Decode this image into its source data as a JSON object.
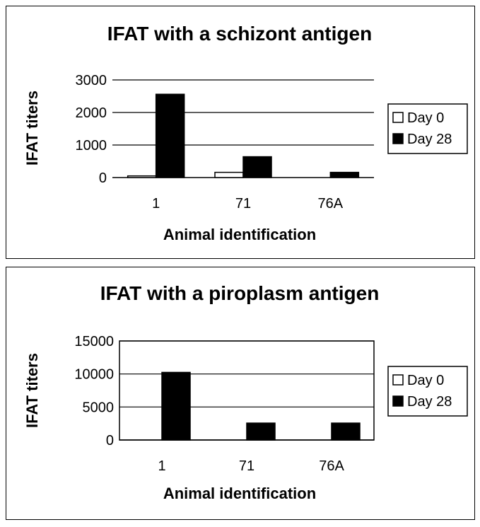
{
  "chart_data": [
    {
      "type": "bar",
      "title": "IFAT with a schizont antigen",
      "xlabel": "Animal identification",
      "ylabel": "IFAT titers",
      "categories": [
        "1",
        "71",
        "76A"
      ],
      "series": [
        {
          "name": "Day 0",
          "values": [
            50,
            160,
            0
          ],
          "color": "#ffffff"
        },
        {
          "name": "Day 28",
          "values": [
            2560,
            640,
            160
          ],
          "color": "#000000"
        }
      ],
      "ylim": [
        0,
        3000
      ],
      "yticks": [
        "0",
        "1000",
        "2000",
        "3000"
      ],
      "grid": "horizontal",
      "legend": "right",
      "plot_border": false
    },
    {
      "type": "bar",
      "title": "IFAT with a piroplasm antigen",
      "xlabel": "Animal identification",
      "ylabel": "IFAT titers",
      "categories": [
        "1",
        "71",
        "76A"
      ],
      "series": [
        {
          "name": "Day 0",
          "values": [
            0,
            0,
            0
          ],
          "color": "#ffffff"
        },
        {
          "name": "Day 28",
          "values": [
            10240,
            2560,
            2560
          ],
          "color": "#000000"
        }
      ],
      "ylim": [
        0,
        15000
      ],
      "yticks": [
        "0",
        "5000",
        "10000",
        "15000"
      ],
      "grid": "horizontal",
      "legend": "right",
      "plot_border": true
    }
  ]
}
